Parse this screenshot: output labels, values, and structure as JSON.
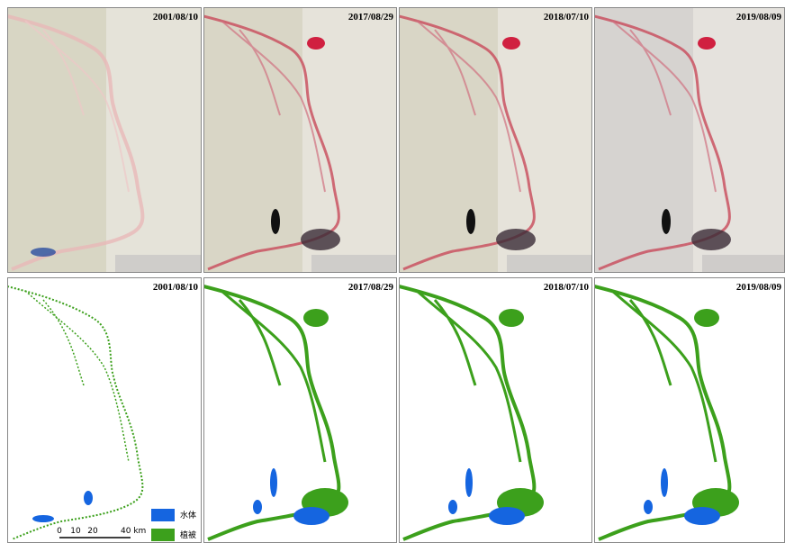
{
  "top_row": {
    "panels": [
      {
        "date": "2001/08/10"
      },
      {
        "date": "2017/08/29"
      },
      {
        "date": "2018/07/10"
      },
      {
        "date": "2019/08/09"
      }
    ]
  },
  "bottom_row": {
    "panels": [
      {
        "date": "2001/08/10"
      },
      {
        "date": "2017/08/29"
      },
      {
        "date": "2018/07/10"
      },
      {
        "date": "2019/08/09"
      }
    ]
  },
  "scale_bar": {
    "ticks": [
      "0",
      "10",
      "20"
    ],
    "end": "40 km"
  },
  "legend": {
    "items": [
      {
        "label": "水体",
        "color": "#1565e0"
      },
      {
        "label": "植被",
        "color": "#3ca01c"
      }
    ]
  }
}
